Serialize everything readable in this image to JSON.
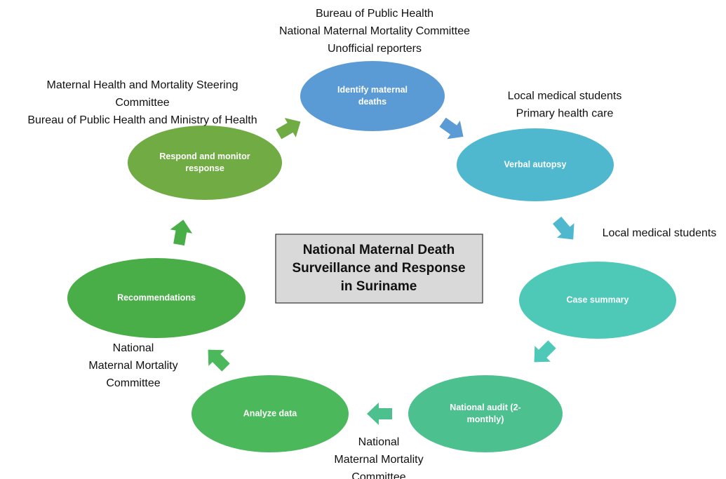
{
  "title": {
    "lines": [
      "National Maternal Death",
      "Surveillance and Response",
      "in Suriname"
    ]
  },
  "nodes": [
    {
      "lines": [
        "Identify maternal",
        "deaths"
      ]
    },
    {
      "lines": [
        "Verbal autopsy"
      ]
    },
    {
      "lines": [
        "Case summary"
      ]
    },
    {
      "lines": [
        "National audit (2-",
        "monthly)"
      ]
    },
    {
      "lines": [
        "Analyze data"
      ]
    },
    {
      "lines": [
        "Recommendations"
      ]
    },
    {
      "lines": [
        "Respond and monitor",
        "response"
      ]
    }
  ],
  "annotations": [
    {
      "lines": [
        "Bureau of Public Health",
        "National Maternal Mortality Committee",
        "Unofficial reporters"
      ]
    },
    {
      "lines": [
        "Local medical students",
        "Primary health care"
      ]
    },
    {
      "lines": [
        "Local medical students"
      ]
    },
    {
      "lines": [
        "National",
        "Maternal Mortality",
        "Committee"
      ]
    },
    {
      "lines": [
        "National",
        "Maternal Mortality",
        "Committee"
      ]
    },
    {
      "lines": [
        "Maternal Health and Mortality Steering",
        "Committee",
        "Bureau of Public Health and Ministry of Health"
      ]
    }
  ]
}
